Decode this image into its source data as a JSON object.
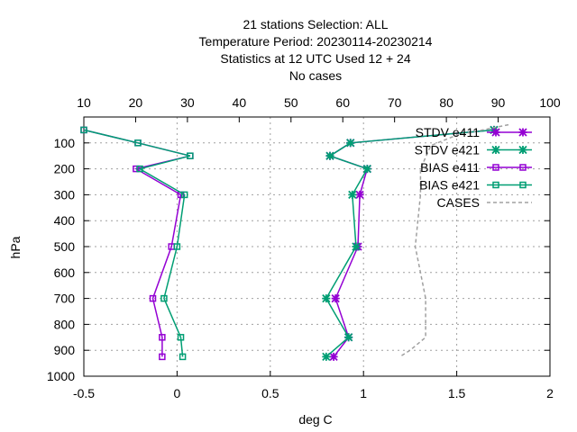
{
  "chart_data": {
    "type": "line",
    "title": [
      "21 stations Selection: ALL",
      "Temperature  Period: 20230114-20230214",
      "Statistics at 12 UTC  Used  12  + 24",
      "No cases"
    ],
    "xlabel": "deg C",
    "ylabel": "hPa",
    "xlim": [
      -0.5,
      2
    ],
    "ylim": [
      1000,
      0
    ],
    "x_ticks": [
      "-0.5",
      "0",
      "0.5",
      "1",
      "1.5",
      "2"
    ],
    "x_tick_values": [
      -0.5,
      0,
      0.5,
      1,
      1.5,
      2
    ],
    "x2lim": [
      10,
      100
    ],
    "x2_ticks": [
      "10",
      "20",
      "30",
      "40",
      "50",
      "60",
      "70",
      "80",
      "90",
      "100"
    ],
    "x2_tick_values": [
      10,
      20,
      30,
      40,
      50,
      60,
      70,
      80,
      90,
      100
    ],
    "y_ticks": [
      "100",
      "200",
      "300",
      "400",
      "500",
      "600",
      "700",
      "800",
      "900",
      "1000"
    ],
    "y_tick_values": [
      100,
      200,
      300,
      400,
      500,
      600,
      700,
      800,
      900,
      1000
    ],
    "grid": true,
    "legend_position": "top-right",
    "series": [
      {
        "name": "STDV e411",
        "color": "#9400d3",
        "marker": "star",
        "axis": "x1",
        "x": [
          1.7,
          0.93,
          0.82,
          1.02,
          0.98,
          0.97,
          0.85,
          0.92,
          0.84
        ],
        "y": [
          50,
          100,
          150,
          200,
          300,
          500,
          700,
          850,
          925
        ]
      },
      {
        "name": "STDV e421",
        "color": "#009e73",
        "marker": "star",
        "axis": "x1",
        "x": [
          1.7,
          0.93,
          0.82,
          1.02,
          0.94,
          0.96,
          0.8,
          0.92,
          0.8
        ],
        "y": [
          50,
          100,
          150,
          200,
          300,
          500,
          700,
          850,
          925
        ]
      },
      {
        "name": "BIAS e411",
        "color": "#9400d3",
        "marker": "square",
        "axis": "x1",
        "x": [
          -0.5,
          -0.21,
          0.07,
          -0.22,
          0.02,
          -0.03,
          -0.13,
          -0.08,
          -0.08
        ],
        "y": [
          50,
          100,
          150,
          200,
          300,
          500,
          700,
          850,
          925
        ]
      },
      {
        "name": "BIAS e421",
        "color": "#009e73",
        "marker": "square",
        "axis": "x1",
        "x": [
          -0.5,
          -0.21,
          0.07,
          -0.2,
          0.04,
          0.0,
          -0.07,
          0.02,
          0.03
        ],
        "y": [
          50,
          100,
          150,
          200,
          300,
          500,
          700,
          850,
          925
        ]
      },
      {
        "name": "CASES",
        "color": "#a0a0a0",
        "marker": "none",
        "dashed": true,
        "axis": "x2",
        "x": [
          92,
          82,
          77,
          75,
          75,
          74,
          75,
          76,
          76,
          76,
          73,
          71
        ],
        "y": [
          30,
          70,
          110,
          200,
          300,
          500,
          600,
          700,
          800,
          850,
          900,
          925
        ]
      }
    ]
  }
}
